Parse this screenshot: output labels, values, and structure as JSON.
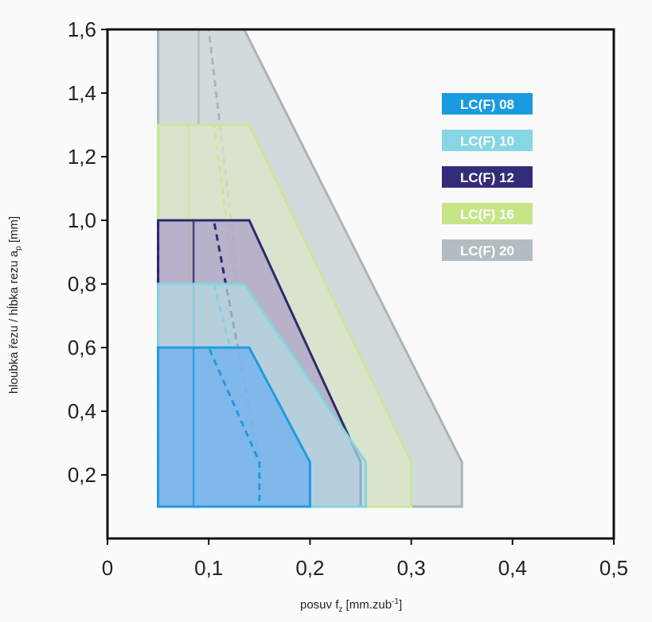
{
  "chart_data": {
    "type": "area",
    "xlabel": "posuv f",
    "xlabel_sub": "z",
    "xlabel_unit": "[mm.zub",
    "xlabel_sup": "-1",
    "xlabel_end": "]",
    "ylabel": "hloubka řezu / hĺbka rezu a",
    "ylabel_sub": "p",
    "ylabel_unit": "[mm]",
    "xlim": [
      0,
      0.5
    ],
    "ylim": [
      0,
      1.6
    ],
    "grid": false,
    "legend_placement": "right",
    "x_ticks": [
      {
        "value": 0,
        "label": "0"
      },
      {
        "value": 0.1,
        "label": "0,1"
      },
      {
        "value": 0.2,
        "label": "0,2"
      },
      {
        "value": 0.3,
        "label": "0,3"
      },
      {
        "value": 0.4,
        "label": "0,4"
      },
      {
        "value": 0.5,
        "label": "0,5"
      }
    ],
    "y_ticks": [
      {
        "value": 0.2,
        "label": "0,2"
      },
      {
        "value": 0.4,
        "label": "0,4"
      },
      {
        "value": 0.6,
        "label": "0,6"
      },
      {
        "value": 0.8,
        "label": "0,8"
      },
      {
        "value": 1.0,
        "label": "1,0"
      },
      {
        "value": 1.2,
        "label": "1,2"
      },
      {
        "value": 1.4,
        "label": "1,4"
      },
      {
        "value": 1.6,
        "label": "1,6"
      }
    ],
    "series": [
      {
        "name": "LC(F) 20",
        "color": "#c4cdd2",
        "edge": "#aab4b9",
        "region": [
          [
            0.05,
            0.1
          ],
          [
            0.05,
            1.6
          ],
          [
            0.135,
            1.6
          ],
          [
            0.35,
            0.24
          ],
          [
            0.35,
            0.1
          ]
        ],
        "dashed_region": [
          [
            0.05,
            0.1
          ],
          [
            0.05,
            1.6
          ],
          [
            0.1,
            1.6
          ],
          [
            0.15,
            0.24
          ],
          [
            0.15,
            0.1
          ]
        ],
        "ref_line": [
          [
            0.09,
            1.3
          ],
          [
            0.09,
            1.6
          ]
        ]
      },
      {
        "name": "LC(F) 16",
        "color": "#dde7c6",
        "edge": "#cde59a",
        "region": [
          [
            0.05,
            0.1
          ],
          [
            0.05,
            1.3
          ],
          [
            0.14,
            1.3
          ],
          [
            0.3,
            0.24
          ],
          [
            0.3,
            0.1
          ]
        ],
        "dashed_region": [
          [
            0.05,
            0.1
          ],
          [
            0.05,
            1.3
          ],
          [
            0.105,
            1.3
          ],
          [
            0.15,
            0.24
          ],
          [
            0.15,
            0.1
          ]
        ],
        "ref_line": [
          [
            0.08,
            0.1
          ],
          [
            0.08,
            1.3
          ]
        ]
      },
      {
        "name": "LC(F) 12",
        "color": "#a99dc8",
        "edge": "#2e2a6e",
        "region": [
          [
            0.05,
            0.1
          ],
          [
            0.05,
            1.0
          ],
          [
            0.14,
            1.0
          ],
          [
            0.25,
            0.24
          ],
          [
            0.25,
            0.1
          ]
        ],
        "dashed_region": [
          [
            0.05,
            0.1
          ],
          [
            0.05,
            1.0
          ],
          [
            0.105,
            1.0
          ],
          [
            0.15,
            0.24
          ],
          [
            0.15,
            0.1
          ]
        ],
        "ref_line": [
          [
            0.085,
            0.1
          ],
          [
            0.085,
            1.0
          ]
        ]
      },
      {
        "name": "LC(F) 10",
        "color": "#b6dbe4",
        "edge": "#86d3df",
        "region": [
          [
            0.05,
            0.1
          ],
          [
            0.05,
            0.8
          ],
          [
            0.135,
            0.8
          ],
          [
            0.255,
            0.24
          ],
          [
            0.255,
            0.1
          ]
        ],
        "dashed_region": [
          [
            0.05,
            0.1
          ],
          [
            0.05,
            0.8
          ],
          [
            0.105,
            0.8
          ],
          [
            0.15,
            0.24
          ],
          [
            0.15,
            0.1
          ]
        ],
        "ref_line": [
          [
            0.085,
            0.1
          ],
          [
            0.085,
            0.8
          ]
        ]
      },
      {
        "name": "LC(F) 08",
        "color": "#78b4ee",
        "edge": "#1f9be0",
        "region": [
          [
            0.05,
            0.1
          ],
          [
            0.05,
            0.6
          ],
          [
            0.14,
            0.6
          ],
          [
            0.2,
            0.24
          ],
          [
            0.2,
            0.1
          ]
        ],
        "dashed_region": [
          [
            0.05,
            0.1
          ],
          [
            0.05,
            0.6
          ],
          [
            0.1,
            0.6
          ],
          [
            0.15,
            0.24
          ],
          [
            0.15,
            0.1
          ]
        ],
        "ref_line": [
          [
            0.085,
            0.1
          ],
          [
            0.085,
            0.6
          ]
        ]
      }
    ],
    "legend": [
      {
        "label": "LC(F) 08",
        "color": "#1a9be0"
      },
      {
        "label": "LC(F) 10",
        "color": "#86d6e3"
      },
      {
        "label": "LC(F) 12",
        "color": "#332d79"
      },
      {
        "label": "LC(F) 16",
        "color": "#c6e589"
      },
      {
        "label": "LC(F) 20",
        "color": "#b3bcc1"
      }
    ]
  }
}
